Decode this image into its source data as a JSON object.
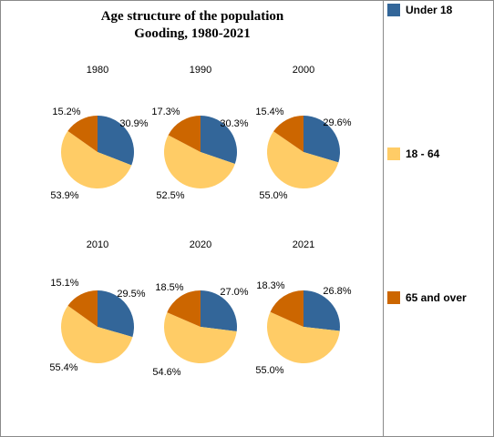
{
  "chart_data": {
    "type": "pie",
    "title": "Age structure of the population",
    "subtitle": "Gooding, 1980-2021",
    "categories": [
      "Under 18",
      "18 - 64",
      "65 and over"
    ],
    "colors": [
      "#336699",
      "#FFCC66",
      "#CC6600"
    ],
    "pies": [
      {
        "year": "1980",
        "values": [
          30.9,
          53.9,
          15.2
        ],
        "labels": [
          "30.9%",
          "53.9%",
          "15.2%"
        ]
      },
      {
        "year": "1990",
        "values": [
          30.3,
          52.5,
          17.3
        ],
        "labels": [
          "30.3%",
          "52.5%",
          "17.3%"
        ]
      },
      {
        "year": "2000",
        "values": [
          29.6,
          55.0,
          15.4
        ],
        "labels": [
          "29.6%",
          "55.0%",
          "15.4%"
        ]
      },
      {
        "year": "2010",
        "values": [
          29.5,
          55.4,
          15.1
        ],
        "labels": [
          "29.5%",
          "55.4%",
          "15.1%"
        ]
      },
      {
        "year": "2020",
        "values": [
          27.0,
          54.6,
          18.5
        ],
        "labels": [
          "27.0%",
          "54.6%",
          "18.5%"
        ]
      },
      {
        "year": "2021",
        "values": [
          26.8,
          55.0,
          18.3
        ],
        "labels": [
          "26.8%",
          "55.0%",
          "18.3%"
        ]
      }
    ],
    "legend_position": "right"
  }
}
